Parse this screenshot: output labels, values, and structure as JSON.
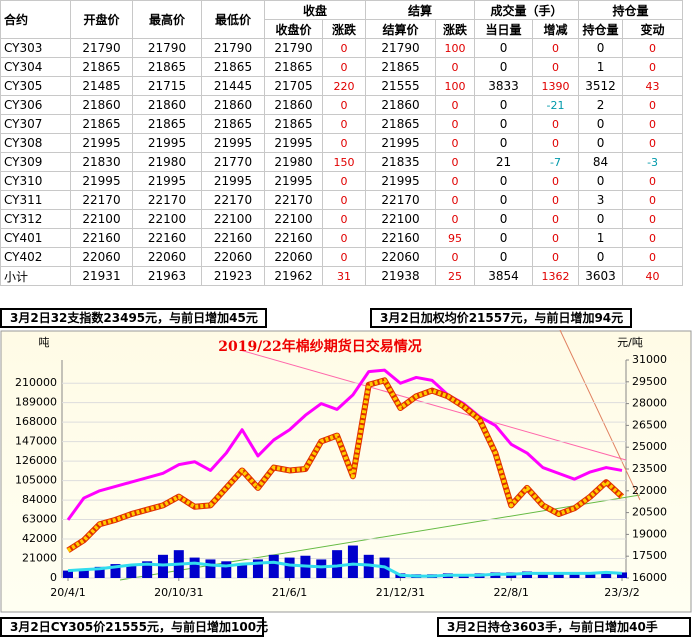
{
  "table": {
    "header": [
      "合约",
      "开盘价",
      "最高价",
      "最低价",
      "收盘",
      "结算",
      "成交量（手）",
      "持仓量"
    ],
    "subheader": [
      "收盘价",
      "涨跌",
      "结算价",
      "涨跌",
      "当日量",
      "增减",
      "持仓量",
      "变动"
    ],
    "rows": [
      [
        "CY303",
        21790,
        21790,
        21790,
        21790,
        0,
        21790,
        100,
        0,
        0,
        0,
        0
      ],
      [
        "CY304",
        21865,
        21865,
        21865,
        21865,
        0,
        21865,
        0,
        0,
        0,
        1,
        0
      ],
      [
        "CY305",
        21485,
        21715,
        21445,
        21705,
        220,
        21555,
        100,
        3833,
        1390,
        3512,
        43
      ],
      [
        "CY306",
        21860,
        21860,
        21860,
        21860,
        0,
        21860,
        0,
        0,
        -21,
        2,
        0
      ],
      [
        "CY307",
        21865,
        21865,
        21865,
        21865,
        0,
        21865,
        0,
        0,
        0,
        0,
        0
      ],
      [
        "CY308",
        21995,
        21995,
        21995,
        21995,
        0,
        21995,
        0,
        0,
        0,
        0,
        0
      ],
      [
        "CY309",
        21830,
        21980,
        21770,
        21980,
        150,
        21835,
        0,
        21,
        -7,
        84,
        -3
      ],
      [
        "CY310",
        21995,
        21995,
        21995,
        21995,
        0,
        21995,
        0,
        0,
        0,
        0,
        0
      ],
      [
        "CY311",
        22170,
        22170,
        22170,
        22170,
        0,
        22170,
        0,
        0,
        0,
        3,
        0
      ],
      [
        "CY312",
        22100,
        22100,
        22100,
        22100,
        0,
        22100,
        0,
        0,
        0,
        0,
        0
      ],
      [
        "CY401",
        22160,
        22160,
        22160,
        22160,
        0,
        22160,
        95,
        0,
        0,
        1,
        0
      ],
      [
        "CY402",
        22060,
        22060,
        22060,
        22060,
        0,
        22060,
        0,
        0,
        0,
        0,
        0
      ],
      [
        "小计",
        21931,
        21963,
        21923,
        21962,
        31,
        21938,
        25,
        3854,
        1362,
        3603,
        40
      ]
    ]
  },
  "notes": [
    "3月2日32支指数23495元，与前日增加45元",
    "3月2日加权均价21557元，与前日增加94元",
    "3月2日CY305价21555元，与前日增加100元",
    "3月2日持仓3603手，与前日增加40手"
  ],
  "chart_data": {
    "type": "combo",
    "title": "2019/22年棉纱期货日交易情况",
    "ylabel": "吨",
    "y2label": "元/吨",
    "categories": [
      "20/4/1",
      null,
      null,
      null,
      null,
      null,
      null,
      "20/10/31",
      null,
      null,
      null,
      null,
      null,
      null,
      "21/6/1",
      null,
      null,
      null,
      null,
      null,
      null,
      "21/12/31",
      null,
      null,
      null,
      null,
      null,
      null,
      "22/8/1",
      null,
      null,
      null,
      null,
      null,
      null,
      "23/3/2"
    ],
    "ylim": [
      0,
      235000
    ],
    "yticks": [
      0,
      21000,
      42000,
      63000,
      84000,
      105000,
      126000,
      147000,
      168000,
      189000,
      210000
    ],
    "y2lim": [
      16000,
      31000
    ],
    "y2ticks": [
      16000,
      17500,
      19000,
      20500,
      22000,
      23500,
      25000,
      26500,
      28000,
      29500,
      31000
    ],
    "grid": true,
    "series": [
      {
        "type": "bar",
        "color": "#0000cc",
        "values": [
          8000,
          9000,
          12000,
          15000,
          14000,
          18000,
          25000,
          30000,
          22000,
          20000,
          18000,
          15000,
          20000,
          25000,
          22000,
          24000,
          20000,
          30000,
          35000,
          25000,
          22000,
          5000,
          4000,
          4000,
          5000,
          4000,
          5000,
          6000,
          6000,
          7000,
          6000,
          5000,
          5000,
          6000,
          7000,
          6000
        ]
      },
      {
        "type": "line",
        "color": "#33ddee",
        "values": [
          8000,
          9000,
          10000,
          12000,
          14000,
          15000,
          14000,
          15000,
          16000,
          14000,
          13000,
          15000,
          16000,
          17000,
          14000,
          13000,
          12000,
          13000,
          15000,
          14000,
          12000,
          3000,
          2000,
          2000,
          3000,
          3000,
          3000,
          4000,
          4000,
          5000,
          5000,
          5000,
          5000,
          5000,
          6000,
          5000
        ]
      },
      {
        "type": "line",
        "axis": "y2",
        "color": "#ff00ff",
        "values": [
          20000,
          21500,
          22000,
          22300,
          22600,
          22900,
          23200,
          23800,
          24000,
          23400,
          24600,
          26200,
          24400,
          25500,
          26200,
          27200,
          28000,
          27600,
          28600,
          30200,
          30300,
          29400,
          29800,
          29600,
          28600,
          28000,
          27100,
          26500,
          25200,
          24600,
          23600,
          23200,
          22800,
          23300,
          23600,
          23400
        ]
      },
      {
        "type": "dotted",
        "axis": "y2",
        "color": "#ffcc00",
        "values": [
          17900,
          18600,
          19700,
          20000,
          20400,
          20700,
          21000,
          21600,
          20900,
          21000,
          22200,
          23400,
          22200,
          23600,
          23400,
          23500,
          25400,
          25800,
          23000,
          29300,
          29600,
          27700,
          28500,
          28900,
          28500,
          27800,
          26900,
          24600,
          21000,
          22200,
          21000,
          20400,
          20800,
          21600,
          22600,
          21600
        ]
      }
    ]
  }
}
